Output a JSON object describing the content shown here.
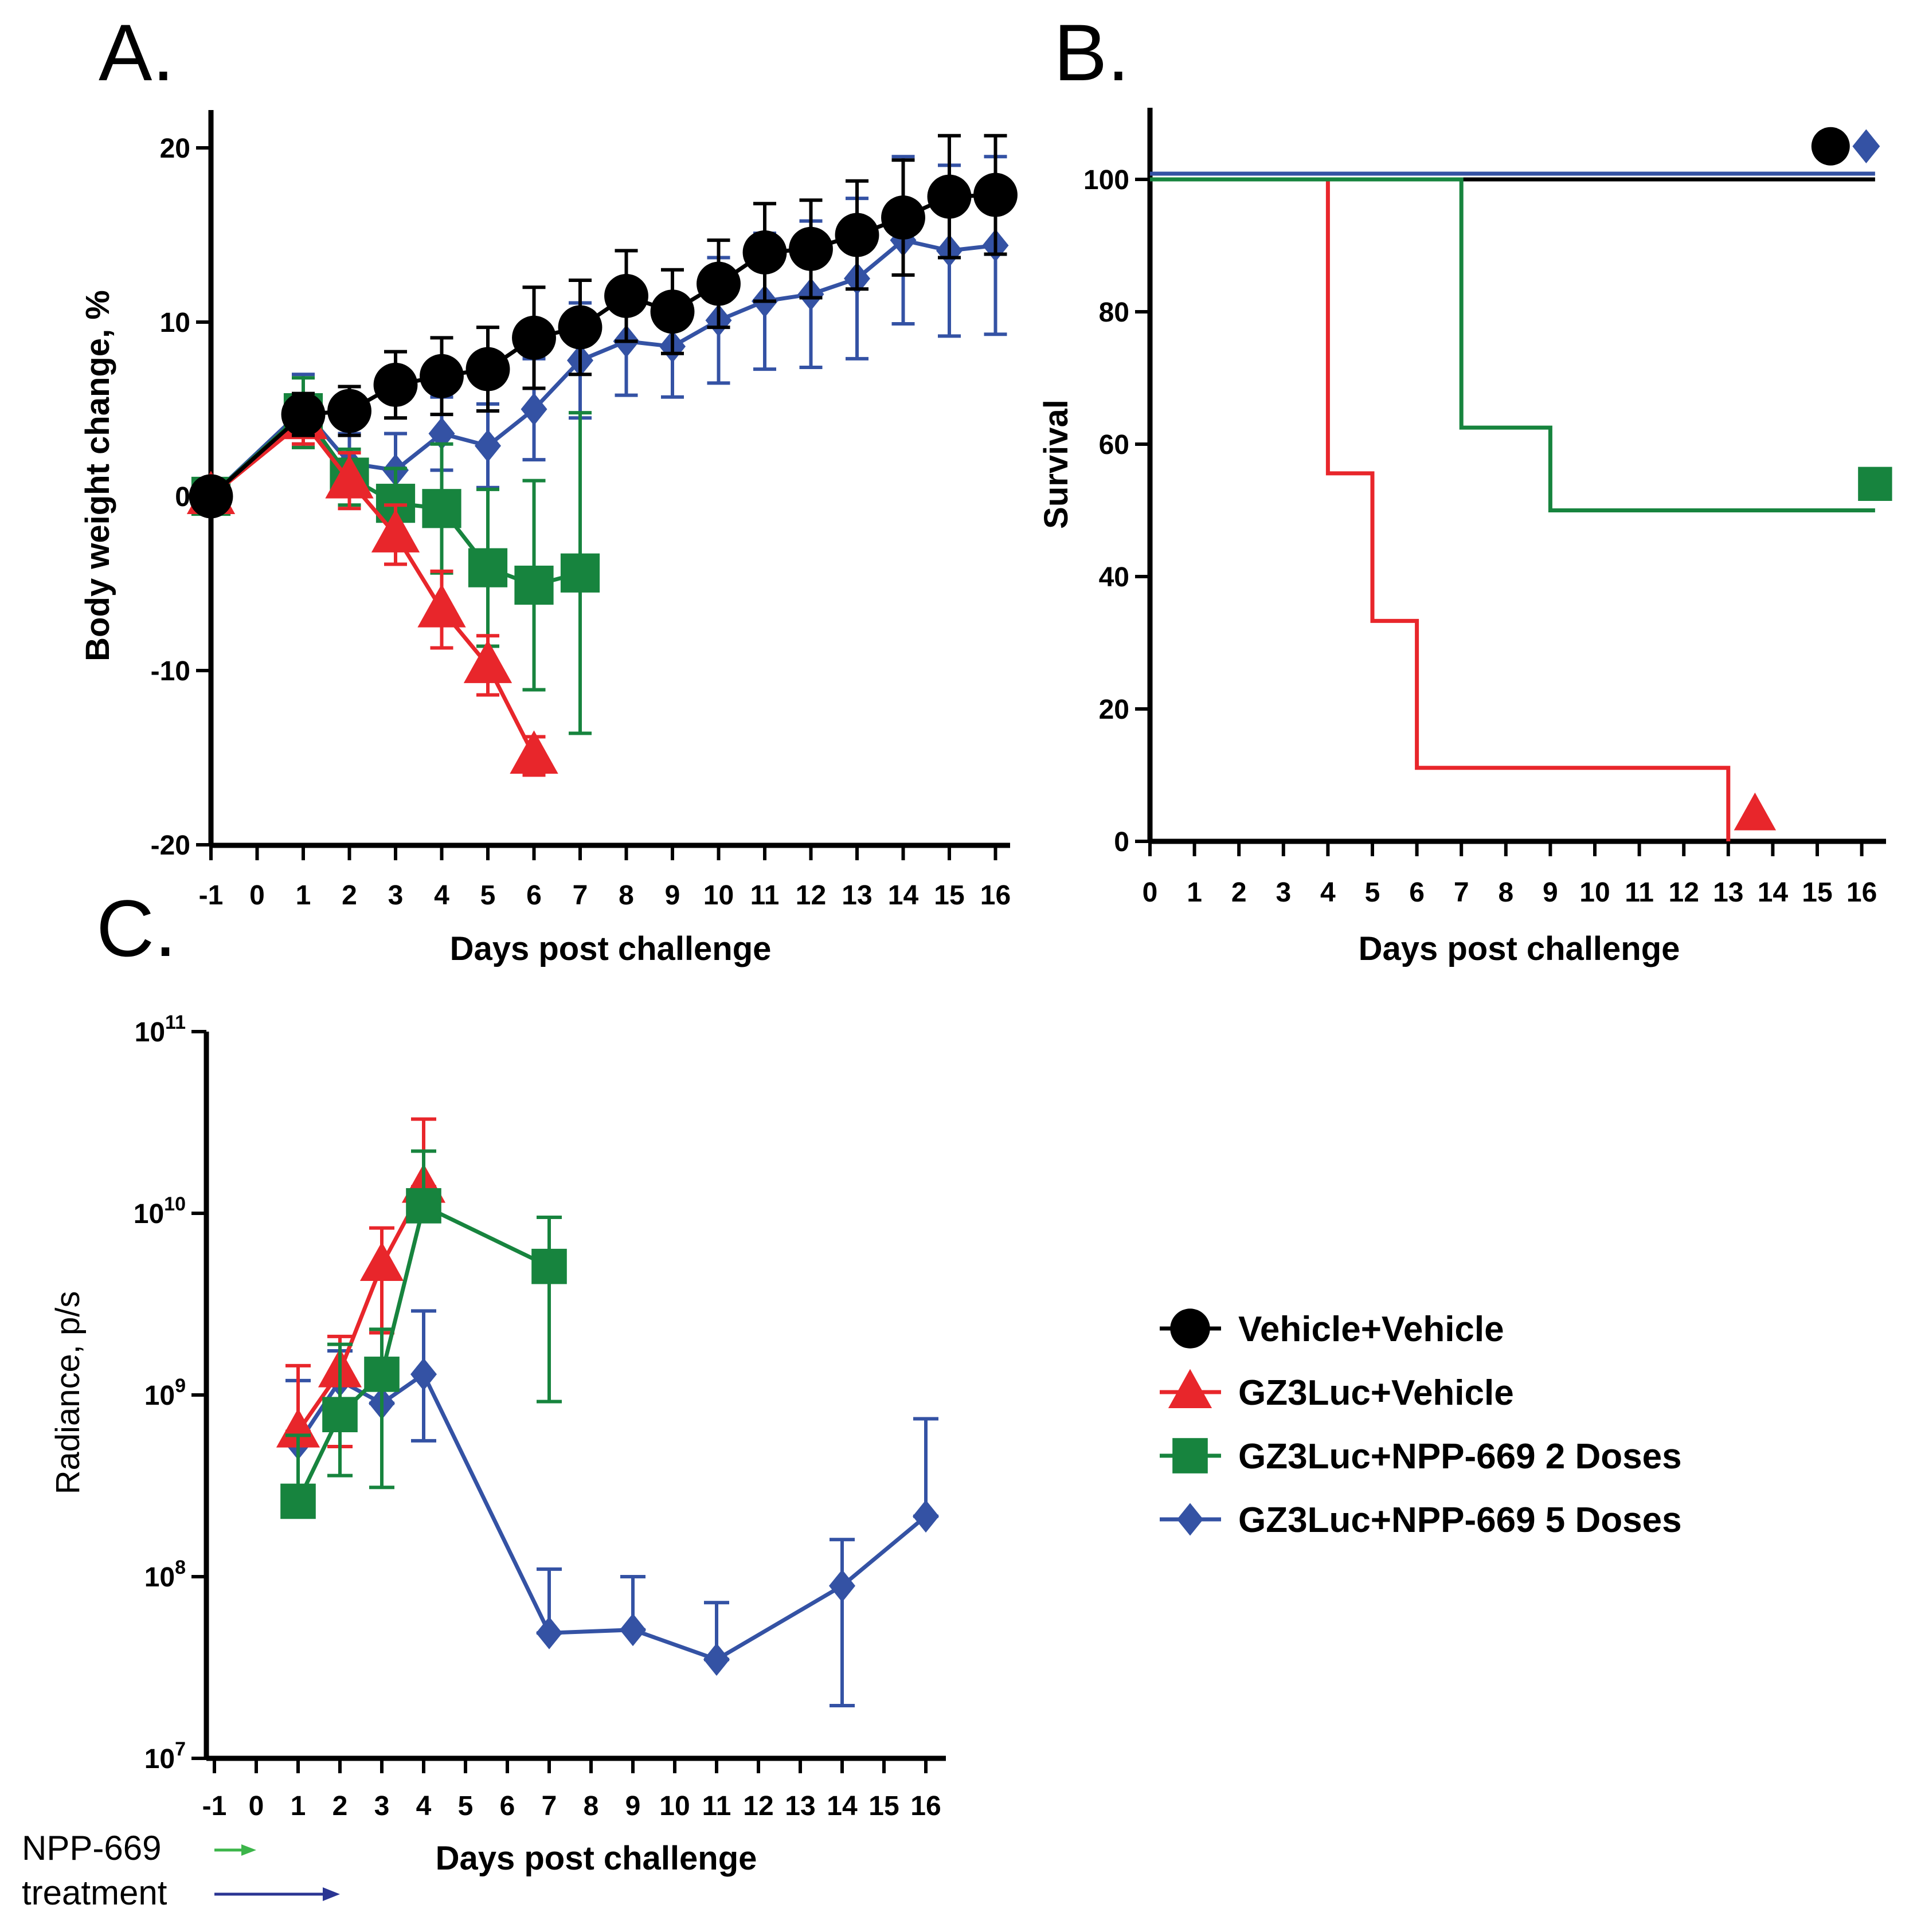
{
  "colors": {
    "Vehicle+Vehicle": "#000000",
    "GZ3Luc+Vehicle": "#e8262b",
    "GZ3Luc+NPP-669 2 Doses": "#17843e",
    "GZ3Luc+NPP-669 5 Doses": "#3452a4",
    "arrow2": "#3cb54a",
    "arrow5": "#2a3593"
  },
  "legend": [
    {
      "name": "Vehicle+Vehicle",
      "marker": "circle"
    },
    {
      "name": "GZ3Luc+Vehicle",
      "marker": "triangle"
    },
    {
      "name": "GZ3Luc+NPP-669 2 Doses",
      "marker": "square"
    },
    {
      "name": "GZ3Luc+NPP-669 5 Doses",
      "marker": "diamond"
    }
  ],
  "chart_data": [
    {
      "panel": "A.",
      "type": "line",
      "xlabel": "Days post challenge",
      "ylabel": "Body weight change, %",
      "xticks": [
        -1,
        0,
        1,
        2,
        3,
        4,
        5,
        6,
        7,
        8,
        9,
        10,
        11,
        12,
        13,
        14,
        15,
        16
      ],
      "yticks": [
        -20,
        -10,
        0,
        10,
        20
      ],
      "ylim": [
        -20,
        22
      ],
      "series": [
        {
          "name": "Vehicle+Vehicle",
          "marker": "circle",
          "x": [
            -1,
            1,
            2,
            3,
            4,
            5,
            6,
            7,
            8,
            9,
            10,
            11,
            12,
            13,
            14,
            15,
            16
          ],
          "y": [
            0,
            4.7,
            4.9,
            6.4,
            6.9,
            7.3,
            9.1,
            9.7,
            11.5,
            10.6,
            12.2,
            14.0,
            14.2,
            15.0,
            16.0,
            17.2,
            17.3
          ],
          "err": [
            0,
            1.2,
            1.4,
            1.9,
            2.2,
            2.4,
            2.9,
            2.7,
            2.6,
            2.4,
            2.5,
            2.8,
            2.8,
            3.1,
            3.3,
            3.5,
            3.4
          ]
        },
        {
          "name": "GZ3Luc+Vehicle",
          "marker": "triangle",
          "x": [
            -1,
            1,
            2,
            3,
            4,
            5,
            6
          ],
          "y": [
            0,
            4.3,
            0.9,
            -2.2,
            -6.5,
            -9.7,
            -14.9
          ],
          "err": [
            0,
            1.3,
            1.6,
            1.7,
            2.2,
            1.7,
            1.1
          ]
        },
        {
          "name": "GZ3Luc+NPP-669 2 Doses",
          "marker": "square",
          "x": [
            -1,
            1,
            2,
            3,
            4,
            5,
            6,
            7
          ],
          "y": [
            0,
            4.8,
            1.1,
            -0.4,
            -0.7,
            -4.1,
            -5.1,
            -4.4
          ],
          "err": [
            0,
            2.0,
            1.6,
            2.0,
            3.7,
            4.5,
            6.0,
            9.2
          ]
        },
        {
          "name": "GZ3Luc+NPP-669 5 Doses",
          "marker": "diamond",
          "x": [
            -1,
            1,
            2,
            3,
            4,
            5,
            6,
            7,
            8,
            9,
            10,
            11,
            12,
            13,
            14,
            15,
            16
          ],
          "y": [
            0,
            5.0,
            1.9,
            1.5,
            3.6,
            2.9,
            5.0,
            7.8,
            8.9,
            8.6,
            10.1,
            11.2,
            11.6,
            12.5,
            14.7,
            14.1,
            14.4
          ],
          "err": [
            0,
            2.0,
            1.7,
            2.1,
            2.1,
            2.4,
            2.9,
            3.3,
            3.1,
            2.9,
            3.6,
            3.9,
            4.2,
            4.6,
            4.8,
            4.9,
            5.1
          ]
        }
      ]
    },
    {
      "panel": "B.",
      "type": "line",
      "subtype": "survival",
      "xlabel": "Days post challenge",
      "ylabel": "Survival",
      "xticks": [
        0,
        1,
        2,
        3,
        4,
        5,
        6,
        7,
        8,
        9,
        10,
        11,
        12,
        13,
        14,
        15,
        16
      ],
      "yticks": [
        0,
        20,
        40,
        60,
        80,
        100
      ],
      "ylim": [
        0,
        110
      ],
      "series": [
        {
          "name": "Vehicle+Vehicle",
          "marker": "circle",
          "x": [
            0,
            16.3
          ],
          "y": [
            100,
            100
          ]
        },
        {
          "name": "GZ3Luc+Vehicle",
          "marker": "triangle",
          "x": [
            0,
            4,
            5,
            6,
            13,
            13
          ],
          "y": [
            100,
            55.6,
            33.3,
            11.1,
            11.1,
            0
          ]
        },
        {
          "name": "GZ3Luc+NPP-669 2 Doses",
          "marker": "square",
          "x": [
            0,
            7,
            9,
            16.3
          ],
          "y": [
            100,
            62.5,
            50,
            50
          ]
        },
        {
          "name": "GZ3Luc+NPP-669 5 Doses",
          "marker": "diamond",
          "x": [
            0,
            16.3
          ],
          "y": [
            100,
            100
          ]
        }
      ]
    },
    {
      "panel": "C.",
      "type": "line",
      "xlabel": "Days post challenge",
      "ylabel": "Radiance, p/s",
      "yscale": "log",
      "xticks": [
        -1,
        0,
        1,
        2,
        3,
        4,
        5,
        6,
        7,
        8,
        9,
        10,
        11,
        12,
        13,
        14,
        15,
        16
      ],
      "ytick_exponents": [
        7,
        8,
        9,
        10,
        11
      ],
      "ylim_exponents": [
        7,
        11
      ],
      "series": [
        {
          "name": "GZ3Luc+Vehicle",
          "marker": "triangle",
          "x": [
            1,
            2,
            3,
            4
          ],
          "y": [
            630000000.0,
            1350000000.0,
            5200000000.0,
            14000000000.0
          ],
          "upper": [
            1450000000.0,
            2100000000.0,
            8300000000.0,
            33000000000.0
          ],
          "lower": [
            630000000.0,
            520000000.0,
            2200000000.0,
            14000000000.0
          ]
        },
        {
          "name": "GZ3Luc+NPP-669 2 Doses",
          "marker": "square",
          "x": [
            1,
            2,
            3,
            4,
            7
          ],
          "y": [
            260000000.0,
            780000000.0,
            1300000000.0,
            11000000000.0,
            5100000000.0
          ],
          "upper": [
            600000000.0,
            1900000000.0,
            2300000000.0,
            22000000000.0,
            9500000000.0
          ],
          "lower": [
            260000000.0,
            360000000.0,
            310000000.0,
            11000000000.0,
            920000000.0
          ]
        },
        {
          "name": "GZ3Luc+NPP-669 5 Doses",
          "marker": "diamond",
          "x": [
            1,
            2,
            3,
            4,
            7,
            9,
            11,
            14,
            16
          ],
          "y": [
            540000000.0,
            1200000000.0,
            900000000.0,
            1300000000.0,
            49000000.0,
            51000000.0,
            35000000.0,
            89000000.0,
            215000000.0
          ],
          "upper": [
            1200000000.0,
            1750000000.0,
            1350000000.0,
            2900000000.0,
            110000000.0,
            100000000.0,
            72000000.0,
            160000000.0,
            740000000.0
          ],
          "lower": [
            540000000.0,
            1200000000.0,
            900000000.0,
            560000000.0,
            49000000.0,
            51000000.0,
            35000000.0,
            19500000.0,
            215000000.0
          ]
        }
      ],
      "annotation": {
        "line1": "NPP-669",
        "line2": "treatment",
        "arrow_2_doses_days": [
          -1,
          0
        ],
        "arrow_5_doses_days": [
          -1,
          2
        ]
      }
    }
  ]
}
